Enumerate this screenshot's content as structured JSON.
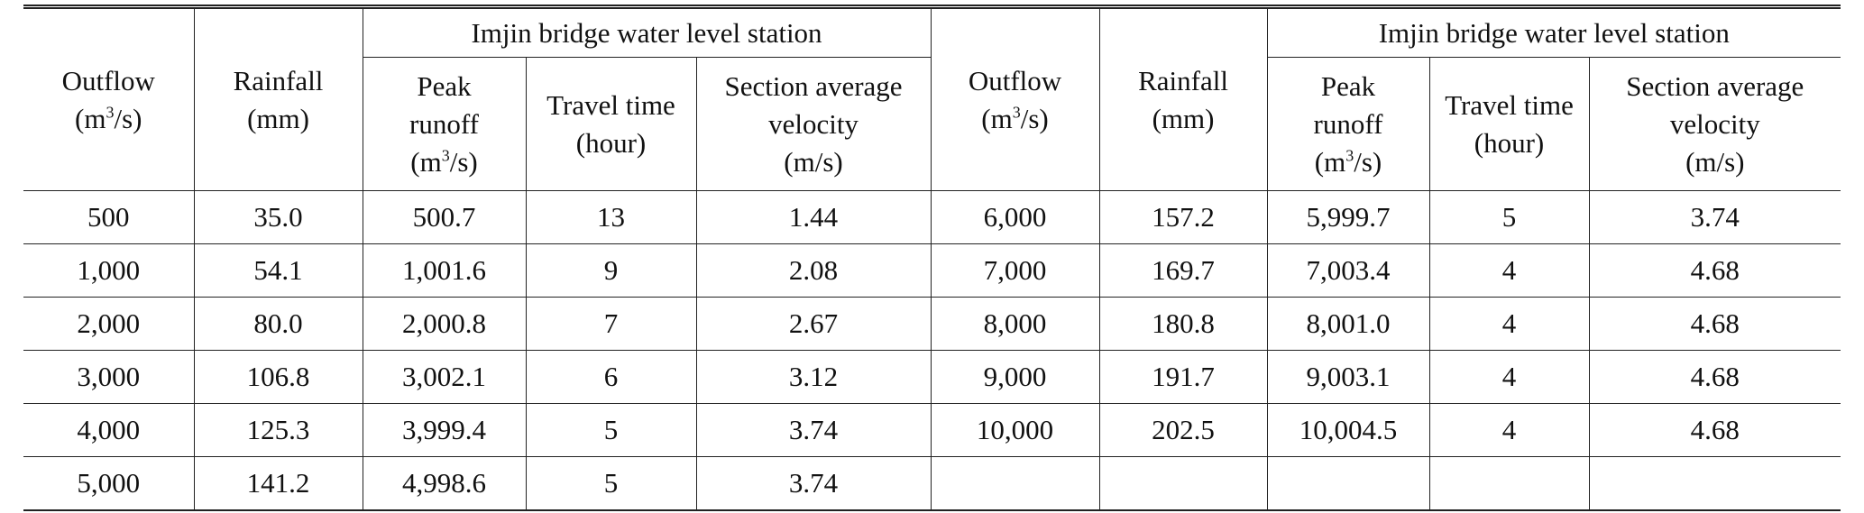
{
  "header": {
    "outflow_label": "Outflow",
    "outflow_unit_prefix": "(m",
    "outflow_unit_sup": "3",
    "outflow_unit_suffix": "/s)",
    "rainfall_label": "Rainfall",
    "rainfall_unit": "(mm)",
    "group_label": "Imjin bridge water level station",
    "peak_runoff_line1": "Peak",
    "peak_runoff_line2": "runoff",
    "peak_runoff_unit_prefix": "(m",
    "peak_runoff_unit_sup": "3",
    "peak_runoff_unit_suffix": "/s)",
    "travel_time_line1": "Travel time",
    "travel_time_line2": "(hour)",
    "velocity_line1": "Section average",
    "velocity_line2": "velocity",
    "velocity_line3": "(m/s)"
  },
  "rows": [
    {
      "left": [
        "500",
        "35.0",
        "500.7",
        "13",
        "1.44"
      ],
      "right": [
        "6,000",
        "157.2",
        "5,999.7",
        "5",
        "3.74"
      ]
    },
    {
      "left": [
        "1,000",
        "54.1",
        "1,001.6",
        "9",
        "2.08"
      ],
      "right": [
        "7,000",
        "169.7",
        "7,003.4",
        "4",
        "4.68"
      ]
    },
    {
      "left": [
        "2,000",
        "80.0",
        "2,000.8",
        "7",
        "2.67"
      ],
      "right": [
        "8,000",
        "180.8",
        "8,001.0",
        "4",
        "4.68"
      ]
    },
    {
      "left": [
        "3,000",
        "106.8",
        "3,002.1",
        "6",
        "3.12"
      ],
      "right": [
        "9,000",
        "191.7",
        "9,003.1",
        "4",
        "4.68"
      ]
    },
    {
      "left": [
        "4,000",
        "125.3",
        "3,999.4",
        "5",
        "3.74"
      ],
      "right": [
        "10,000",
        "202.5",
        "10,004.5",
        "4",
        "4.68"
      ]
    },
    {
      "left": [
        "5,000",
        "141.2",
        "4,998.6",
        "5",
        "3.74"
      ],
      "right": [
        "",
        "",
        "",
        "",
        ""
      ]
    }
  ]
}
